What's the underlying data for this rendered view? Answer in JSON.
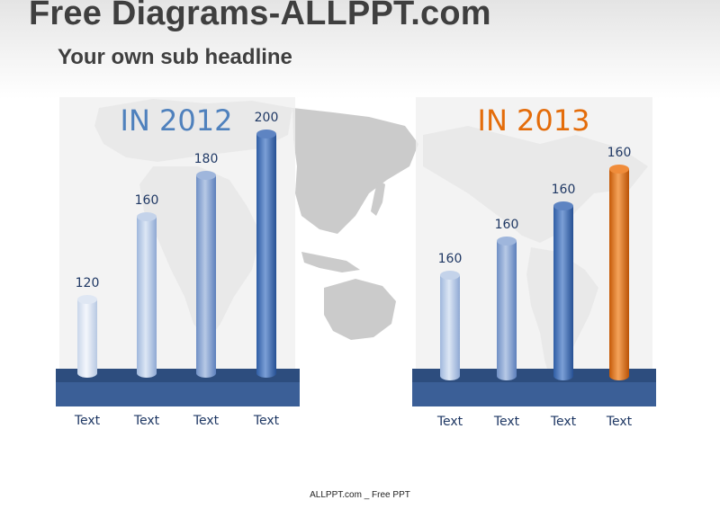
{
  "header": {
    "title": "Free Diagrams-ALLPPT.com",
    "subtitle": "Your own sub headline"
  },
  "footer": {
    "text": "ALLPPT.com _ Free PPT"
  },
  "colors": {
    "panel": "#f0f0f0",
    "map": "#cfcfcf",
    "base_top": "#2d4d7e",
    "base_front": "#3b5f97",
    "label_text": "#1f3864",
    "year_2012": "#4f81bd",
    "year_2013": "#e46c0a",
    "highlight": "#e46c0a"
  },
  "chart_data": [
    {
      "type": "bar",
      "title": "IN 2012",
      "categories": [
        "Text",
        "Text",
        "Text",
        "Text"
      ],
      "values": [
        120,
        160,
        180,
        200
      ],
      "data_labels": [
        "120",
        "160",
        "180",
        "200"
      ],
      "highlight_index": null
    },
    {
      "type": "bar",
      "title": "IN 2013",
      "categories": [
        "Text",
        "Text",
        "Text",
        "Text"
      ],
      "values": [
        160,
        160,
        160,
        160
      ],
      "data_labels": [
        "160",
        "160",
        "160",
        "160"
      ],
      "highlight_index": 3
    }
  ]
}
